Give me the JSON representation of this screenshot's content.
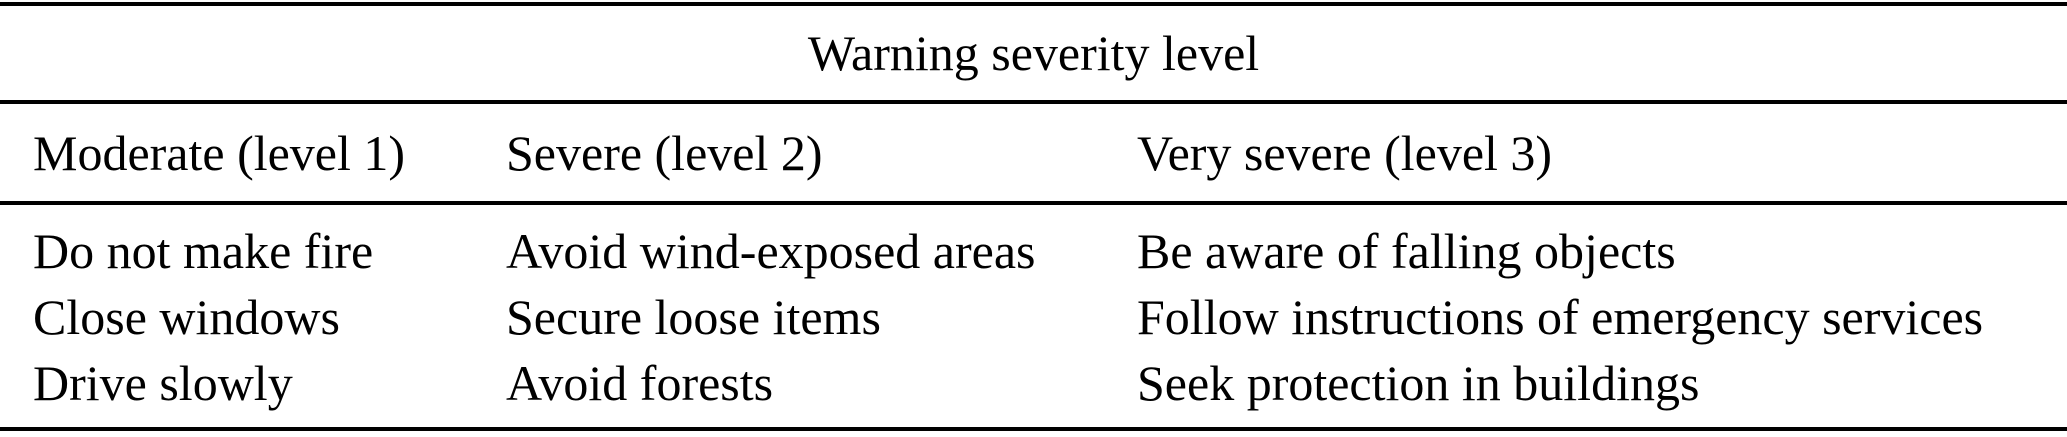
{
  "table": {
    "title": "Warning severity level",
    "columns": [
      {
        "header": "Moderate (level 1)",
        "items": [
          "Do not make fire",
          "Close windows",
          "Drive slowly"
        ]
      },
      {
        "header": "Severe (level 2)",
        "items": [
          "Avoid wind-exposed areas",
          "Secure loose items",
          "Avoid forests"
        ]
      },
      {
        "header": "Very severe (level 3)",
        "items": [
          "Be aware of falling objects",
          "Follow instructions of emergency services",
          "Seek protection in buildings"
        ]
      }
    ]
  },
  "colors": {
    "text": "#000000",
    "rule": "#000000",
    "background": "#ffffff"
  }
}
